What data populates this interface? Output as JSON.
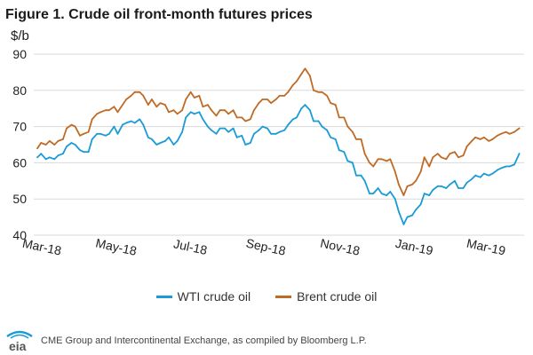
{
  "figure": {
    "title": "Figure 1. Crude oil front-month futures prices",
    "unit": "$/b"
  },
  "source": "CME Group and Intercontinental Exchange, as compiled by Bloomberg L.P.",
  "logo": {
    "text": "eia"
  },
  "chart_data": {
    "type": "line",
    "title": "Figure 1. Crude oil front-month futures prices",
    "xlabel": "",
    "ylabel": "$/b",
    "ylim": [
      40,
      90
    ],
    "yticks": [
      40,
      50,
      60,
      70,
      80,
      90
    ],
    "xticks": [
      {
        "date": "2018-03-01",
        "label": "Mar-18"
      },
      {
        "date": "2018-05-01",
        "label": "May-18"
      },
      {
        "date": "2018-07-01",
        "label": "Jul-18"
      },
      {
        "date": "2018-09-01",
        "label": "Sep-18"
      },
      {
        "date": "2018-11-01",
        "label": "Nov-18"
      },
      {
        "date": "2019-01-01",
        "label": "Jan-19"
      },
      {
        "date": "2019-03-01",
        "label": "Mar-19"
      }
    ],
    "xlim": [
      "2018-02-23",
      "2019-04-02"
    ],
    "grid": "horizontal",
    "legend_placement": "bottom-center",
    "series": [
      {
        "name": "WTI crude oil",
        "color": "#1a9bd7",
        "x": [
          "2018-02-26",
          "2018-03-01",
          "2018-03-05",
          "2018-03-08",
          "2018-03-12",
          "2018-03-15",
          "2018-03-19",
          "2018-03-22",
          "2018-03-26",
          "2018-03-29",
          "2018-04-02",
          "2018-04-05",
          "2018-04-09",
          "2018-04-12",
          "2018-04-16",
          "2018-04-19",
          "2018-04-23",
          "2018-04-26",
          "2018-04-30",
          "2018-05-03",
          "2018-05-07",
          "2018-05-10",
          "2018-05-14",
          "2018-05-17",
          "2018-05-21",
          "2018-05-24",
          "2018-05-28",
          "2018-05-31",
          "2018-06-04",
          "2018-06-07",
          "2018-06-11",
          "2018-06-14",
          "2018-06-18",
          "2018-06-21",
          "2018-06-25",
          "2018-06-28",
          "2018-07-02",
          "2018-07-05",
          "2018-07-09",
          "2018-07-12",
          "2018-07-16",
          "2018-07-19",
          "2018-07-23",
          "2018-07-26",
          "2018-07-30",
          "2018-08-02",
          "2018-08-06",
          "2018-08-09",
          "2018-08-13",
          "2018-08-16",
          "2018-08-20",
          "2018-08-23",
          "2018-08-27",
          "2018-08-30",
          "2018-09-03",
          "2018-09-06",
          "2018-09-10",
          "2018-09-13",
          "2018-09-17",
          "2018-09-20",
          "2018-09-24",
          "2018-09-27",
          "2018-10-01",
          "2018-10-04",
          "2018-10-08",
          "2018-10-11",
          "2018-10-15",
          "2018-10-18",
          "2018-10-22",
          "2018-10-25",
          "2018-10-29",
          "2018-11-01",
          "2018-11-05",
          "2018-11-08",
          "2018-11-12",
          "2018-11-15",
          "2018-11-19",
          "2018-11-22",
          "2018-11-26",
          "2018-11-29",
          "2018-12-03",
          "2018-12-06",
          "2018-12-10",
          "2018-12-13",
          "2018-12-17",
          "2018-12-20",
          "2018-12-24",
          "2018-12-27",
          "2018-12-31",
          "2019-01-03",
          "2019-01-07",
          "2019-01-10",
          "2019-01-14",
          "2019-01-17",
          "2019-01-21",
          "2019-01-24",
          "2019-01-28",
          "2019-01-31",
          "2019-02-04",
          "2019-02-07",
          "2019-02-11",
          "2019-02-14",
          "2019-02-18",
          "2019-02-21",
          "2019-02-25",
          "2019-02-28",
          "2019-03-04",
          "2019-03-07",
          "2019-03-11",
          "2019-03-14",
          "2019-03-18",
          "2019-03-21",
          "2019-03-25",
          "2019-03-29"
        ],
        "values": [
          61.5,
          62.5,
          61.0,
          61.5,
          61.0,
          62.0,
          62.5,
          64.5,
          65.5,
          65.0,
          63.5,
          63.0,
          63.0,
          66.5,
          68.0,
          68.0,
          67.5,
          68.0,
          70.0,
          68.0,
          70.5,
          71.0,
          71.5,
          71.0,
          72.0,
          70.5,
          67.0,
          66.5,
          65.0,
          65.5,
          66.0,
          67.0,
          65.0,
          66.0,
          68.5,
          72.5,
          74.0,
          73.5,
          74.0,
          72.0,
          70.0,
          69.0,
          68.0,
          69.5,
          69.5,
          68.5,
          69.5,
          67.0,
          67.5,
          65.0,
          65.5,
          68.0,
          69.0,
          70.0,
          69.5,
          68.0,
          68.0,
          68.5,
          69.0,
          70.5,
          72.0,
          72.5,
          75.0,
          76.0,
          74.5,
          71.5,
          71.5,
          70.0,
          69.0,
          67.0,
          66.5,
          63.5,
          63.0,
          60.5,
          60.0,
          56.5,
          56.5,
          55.0,
          51.5,
          51.5,
          53.0,
          51.5,
          51.0,
          52.0,
          50.0,
          46.5,
          43.0,
          45.0,
          45.5,
          47.0,
          48.5,
          51.5,
          51.0,
          52.5,
          53.5,
          53.5,
          53.0,
          54.0,
          55.0,
          53.0,
          53.0,
          54.5,
          55.5,
          56.5,
          56.0,
          57.0,
          56.5,
          57.0,
          58.0,
          58.5,
          59.0,
          59.0,
          59.5,
          62.5
        ]
      },
      {
        "name": "Brent crude oil",
        "color": "#c06b25",
        "x": [
          "2018-02-26",
          "2018-03-01",
          "2018-03-05",
          "2018-03-08",
          "2018-03-12",
          "2018-03-15",
          "2018-03-19",
          "2018-03-22",
          "2018-03-26",
          "2018-03-29",
          "2018-04-02",
          "2018-04-05",
          "2018-04-09",
          "2018-04-12",
          "2018-04-16",
          "2018-04-19",
          "2018-04-23",
          "2018-04-26",
          "2018-04-30",
          "2018-05-03",
          "2018-05-07",
          "2018-05-10",
          "2018-05-14",
          "2018-05-17",
          "2018-05-21",
          "2018-05-24",
          "2018-05-28",
          "2018-05-31",
          "2018-06-04",
          "2018-06-07",
          "2018-06-11",
          "2018-06-14",
          "2018-06-18",
          "2018-06-21",
          "2018-06-25",
          "2018-06-28",
          "2018-07-02",
          "2018-07-05",
          "2018-07-09",
          "2018-07-12",
          "2018-07-16",
          "2018-07-19",
          "2018-07-23",
          "2018-07-26",
          "2018-07-30",
          "2018-08-02",
          "2018-08-06",
          "2018-08-09",
          "2018-08-13",
          "2018-08-16",
          "2018-08-20",
          "2018-08-23",
          "2018-08-27",
          "2018-08-30",
          "2018-09-03",
          "2018-09-06",
          "2018-09-10",
          "2018-09-13",
          "2018-09-17",
          "2018-09-20",
          "2018-09-24",
          "2018-09-27",
          "2018-10-01",
          "2018-10-04",
          "2018-10-08",
          "2018-10-11",
          "2018-10-15",
          "2018-10-18",
          "2018-10-22",
          "2018-10-25",
          "2018-10-29",
          "2018-11-01",
          "2018-11-05",
          "2018-11-08",
          "2018-11-12",
          "2018-11-15",
          "2018-11-19",
          "2018-11-22",
          "2018-11-26",
          "2018-11-29",
          "2018-12-03",
          "2018-12-06",
          "2018-12-10",
          "2018-12-13",
          "2018-12-17",
          "2018-12-20",
          "2018-12-24",
          "2018-12-27",
          "2018-12-31",
          "2019-01-03",
          "2019-01-07",
          "2019-01-10",
          "2019-01-14",
          "2019-01-17",
          "2019-01-21",
          "2019-01-24",
          "2019-01-28",
          "2019-01-31",
          "2019-02-04",
          "2019-02-07",
          "2019-02-11",
          "2019-02-14",
          "2019-02-18",
          "2019-02-21",
          "2019-02-25",
          "2019-02-28",
          "2019-03-04",
          "2019-03-07",
          "2019-03-11",
          "2019-03-14",
          "2019-03-18",
          "2019-03-21",
          "2019-03-25",
          "2019-03-29"
        ],
        "values": [
          64.0,
          65.5,
          65.0,
          66.0,
          65.0,
          66.0,
          66.5,
          69.5,
          70.5,
          70.0,
          67.5,
          68.0,
          68.5,
          72.0,
          73.5,
          74.0,
          74.5,
          74.5,
          75.5,
          74.0,
          76.0,
          77.5,
          78.5,
          79.5,
          79.5,
          78.5,
          76.0,
          77.5,
          75.5,
          76.5,
          76.0,
          74.0,
          74.5,
          73.5,
          74.5,
          77.5,
          79.5,
          78.0,
          78.5,
          75.5,
          76.0,
          74.5,
          73.0,
          74.5,
          74.5,
          73.5,
          74.5,
          72.5,
          72.5,
          71.5,
          72.0,
          74.5,
          76.5,
          77.5,
          77.5,
          76.5,
          77.5,
          78.5,
          78.5,
          79.5,
          81.5,
          82.5,
          84.5,
          86.0,
          84.0,
          80.0,
          79.5,
          79.5,
          78.5,
          76.5,
          76.0,
          72.5,
          72.5,
          70.0,
          68.5,
          66.5,
          66.5,
          62.5,
          60.0,
          59.0,
          61.0,
          61.0,
          60.5,
          61.0,
          57.5,
          54.0,
          51.0,
          53.5,
          54.0,
          55.0,
          57.5,
          61.5,
          59.0,
          61.5,
          62.5,
          61.5,
          61.0,
          62.5,
          63.0,
          61.5,
          62.0,
          64.5,
          66.0,
          67.0,
          66.5,
          67.0,
          66.0,
          66.5,
          67.5,
          68.0,
          68.5,
          68.0,
          68.5,
          69.5
        ]
      }
    ]
  }
}
